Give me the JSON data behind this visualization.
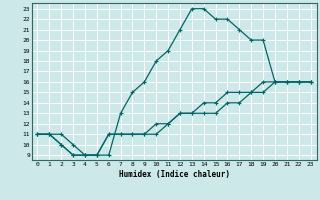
{
  "title": "",
  "xlabel": "Humidex (Indice chaleur)",
  "bg_color": "#cce8e8",
  "grid_color": "#aacccc",
  "line_color": "#006666",
  "xlim": [
    -0.5,
    23.5
  ],
  "ylim": [
    8.5,
    23.5
  ],
  "xticks": [
    0,
    1,
    2,
    3,
    4,
    5,
    6,
    7,
    8,
    9,
    10,
    11,
    12,
    13,
    14,
    15,
    16,
    17,
    18,
    19,
    20,
    21,
    22,
    23
  ],
  "yticks": [
    9,
    10,
    11,
    12,
    13,
    14,
    15,
    16,
    17,
    18,
    19,
    20,
    21,
    22,
    23
  ],
  "curve1_x": [
    0,
    1,
    2,
    3,
    4,
    5,
    6,
    7,
    8,
    9,
    10,
    11,
    12,
    13,
    14,
    15,
    16,
    17,
    18,
    19,
    20,
    21,
    22,
    23
  ],
  "curve1_y": [
    11,
    11,
    11,
    10,
    9,
    9,
    9,
    13,
    15,
    16,
    18,
    19,
    21,
    23,
    23,
    22,
    22,
    21,
    20,
    20,
    16,
    16,
    16,
    16
  ],
  "curve2_x": [
    0,
    1,
    2,
    3,
    4,
    5,
    6,
    7,
    8,
    9,
    10,
    11,
    12,
    13,
    14,
    15,
    16,
    17,
    18,
    19,
    20,
    21,
    22,
    23
  ],
  "curve2_y": [
    11,
    11,
    10,
    9,
    9,
    9,
    11,
    11,
    11,
    11,
    11,
    12,
    13,
    13,
    13,
    13,
    14,
    14,
    15,
    15,
    16,
    16,
    16,
    16
  ],
  "curve3_x": [
    0,
    1,
    2,
    3,
    4,
    5,
    6,
    7,
    8,
    9,
    10,
    11,
    12,
    13,
    14,
    15,
    16,
    17,
    18,
    19,
    20,
    21,
    22,
    23
  ],
  "curve3_y": [
    11,
    11,
    10,
    9,
    9,
    9,
    11,
    11,
    11,
    11,
    12,
    12,
    13,
    13,
    14,
    14,
    15,
    15,
    15,
    16,
    16,
    16,
    16,
    16
  ],
  "markersize": 2.5,
  "linewidth": 0.9
}
